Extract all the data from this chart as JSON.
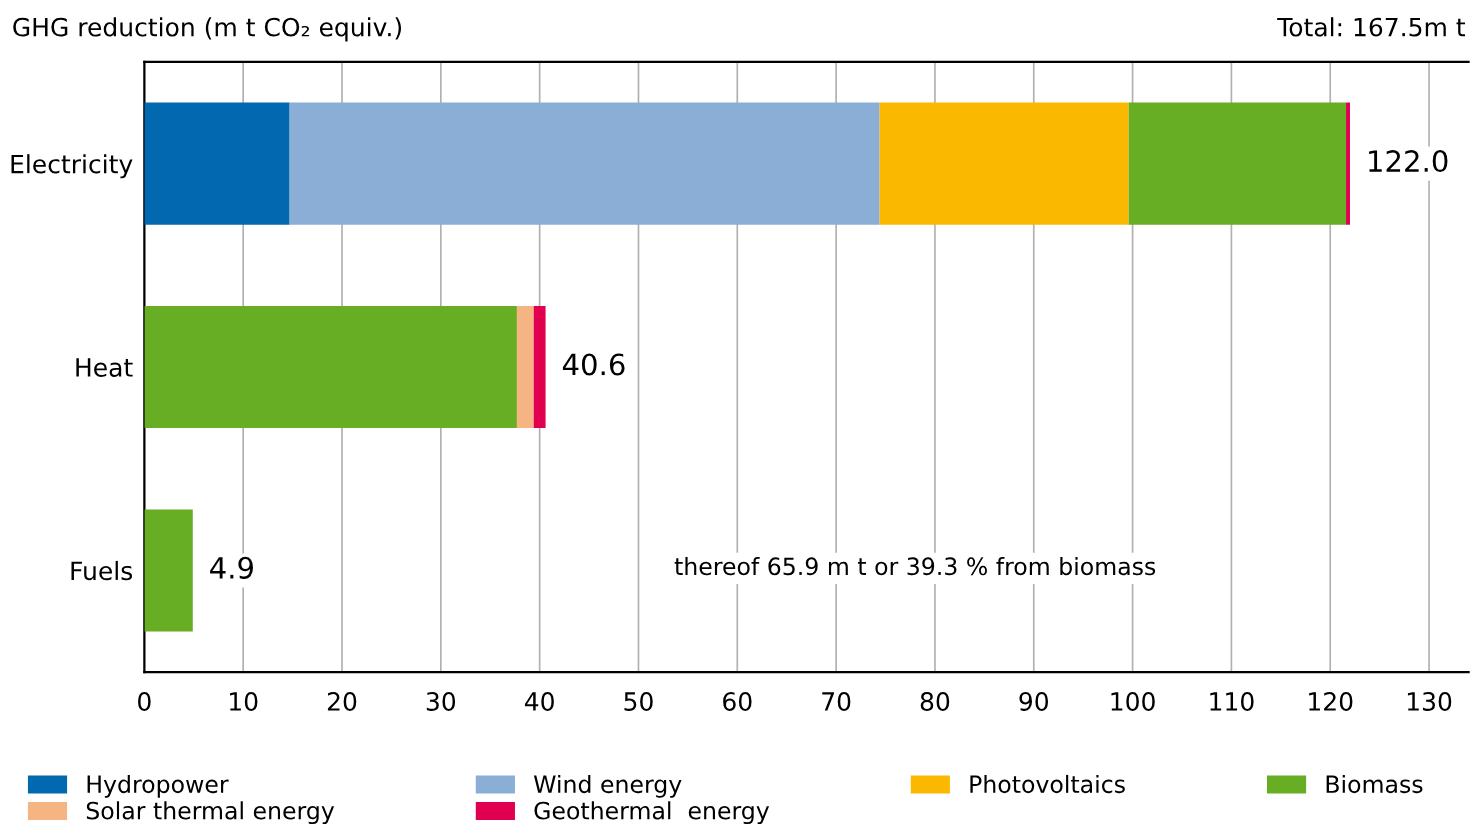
{
  "chart_data": {
    "type": "bar",
    "orientation": "horizontal",
    "stacked": true,
    "title": "GHG reduction (m t CO₂ equiv.)",
    "categories": [
      "Electricity",
      "Heat",
      "Fuels"
    ],
    "series": [
      {
        "name": "Hydropower",
        "color": "#0268b0",
        "values": [
          14.7,
          null,
          null
        ]
      },
      {
        "name": "Wind energy",
        "color": "#8aaed6",
        "values": [
          59.7,
          null,
          null
        ]
      },
      {
        "name": "Photovoltaics",
        "color": "#fab900",
        "values": [
          25.2,
          null,
          null
        ]
      },
      {
        "name": "Biomass",
        "color": "#67ae24",
        "values": [
          22.0,
          37.7,
          4.9
        ]
      },
      {
        "name": "Solar thermal energy",
        "color": "#f5b482",
        "values": [
          null,
          1.7,
          null
        ]
      },
      {
        "name": "Geothermal  energy",
        "color": "#e10050",
        "values": [
          0.4,
          1.2,
          null
        ]
      }
    ],
    "totals": [
      "122.0",
      "40.6",
      "4.9"
    ],
    "xlim": [
      0,
      134
    ],
    "xticks": [
      0,
      10,
      20,
      30,
      40,
      50,
      60,
      70,
      80,
      90,
      100,
      110,
      120,
      130
    ],
    "grid": "x",
    "legend": "bottom",
    "annotations": [
      "Total: 167.5m t",
      "thereof 65.9 m t or 39.3 % from biomass"
    ]
  }
}
